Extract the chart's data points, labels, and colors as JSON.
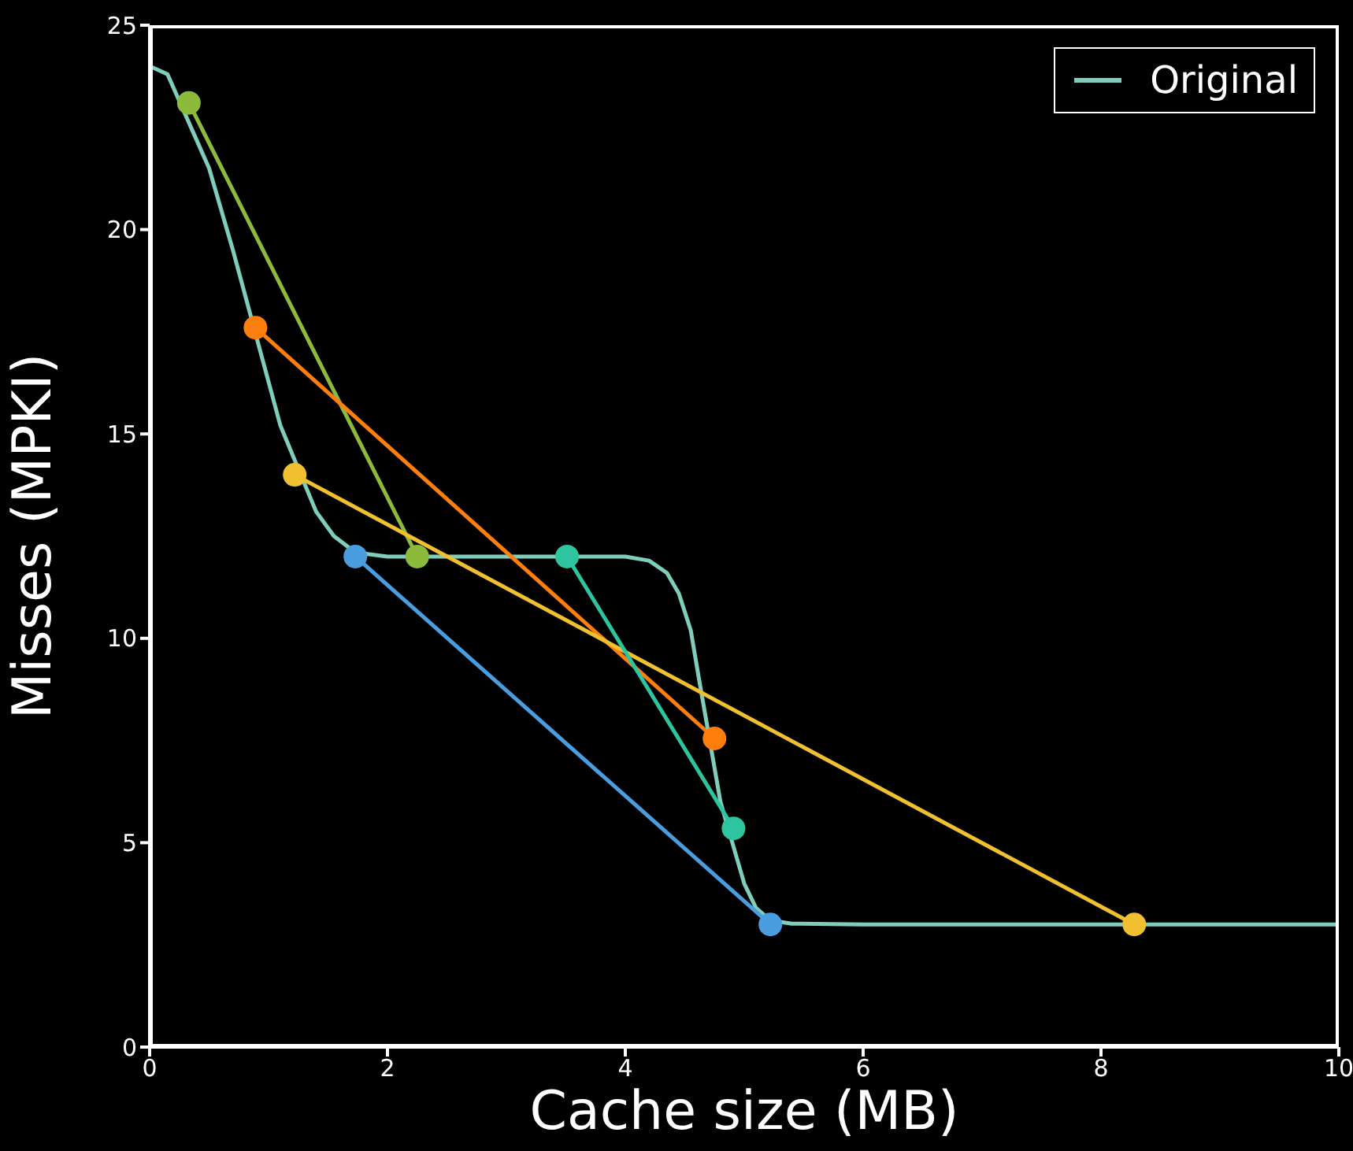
{
  "chart_data": {
    "type": "line",
    "xlabel": "Cache size (MB)",
    "ylabel": "Misses (MPKI)",
    "xlim": [
      0,
      10
    ],
    "xticks": [
      0,
      2,
      4,
      6,
      8,
      10
    ],
    "ylim": [
      0,
      25
    ],
    "yticks": [
      0,
      5,
      10,
      15,
      20,
      25
    ],
    "legend": "top right",
    "series": [
      {
        "name": "Original",
        "color": "#7fcdbb",
        "marker": "none",
        "x": [
          0,
          0.15,
          0.5,
          0.7,
          1.1,
          1.4,
          1.55,
          1.73,
          2,
          2.5,
          3,
          3.5,
          4,
          4.2,
          4.35,
          4.45,
          4.55,
          4.62,
          4.8,
          4.9,
          5,
          5.1,
          5.22,
          5.4,
          6,
          8,
          10
        ],
        "values": [
          24,
          23.8,
          21.5,
          19.5,
          15.2,
          13.1,
          12.5,
          12.1,
          12,
          12,
          12,
          12,
          12,
          11.9,
          11.6,
          11.1,
          10.2,
          9,
          6,
          5,
          4,
          3.4,
          3.1,
          3.02,
          3,
          3,
          3
        ]
      },
      {
        "color": "#8cbb3c",
        "marker": "circle",
        "x": [
          0.33,
          2.25
        ],
        "values": [
          23.1,
          12
        ]
      },
      {
        "color": "#ff7f0e",
        "marker": "circle",
        "x": [
          0.89,
          4.75
        ],
        "values": [
          17.6,
          7.55
        ]
      },
      {
        "color": "#f0c030",
        "marker": "circle",
        "x": [
          1.22,
          8.28
        ],
        "values": [
          14,
          3
        ]
      },
      {
        "color": "#4a9ee0",
        "marker": "circle",
        "x": [
          1.73,
          5.22
        ],
        "values": [
          12,
          3
        ]
      },
      {
        "color": "#2ec4a0",
        "marker": "circle",
        "x": [
          3.51,
          4.91
        ],
        "values": [
          12,
          5.35
        ]
      }
    ]
  }
}
